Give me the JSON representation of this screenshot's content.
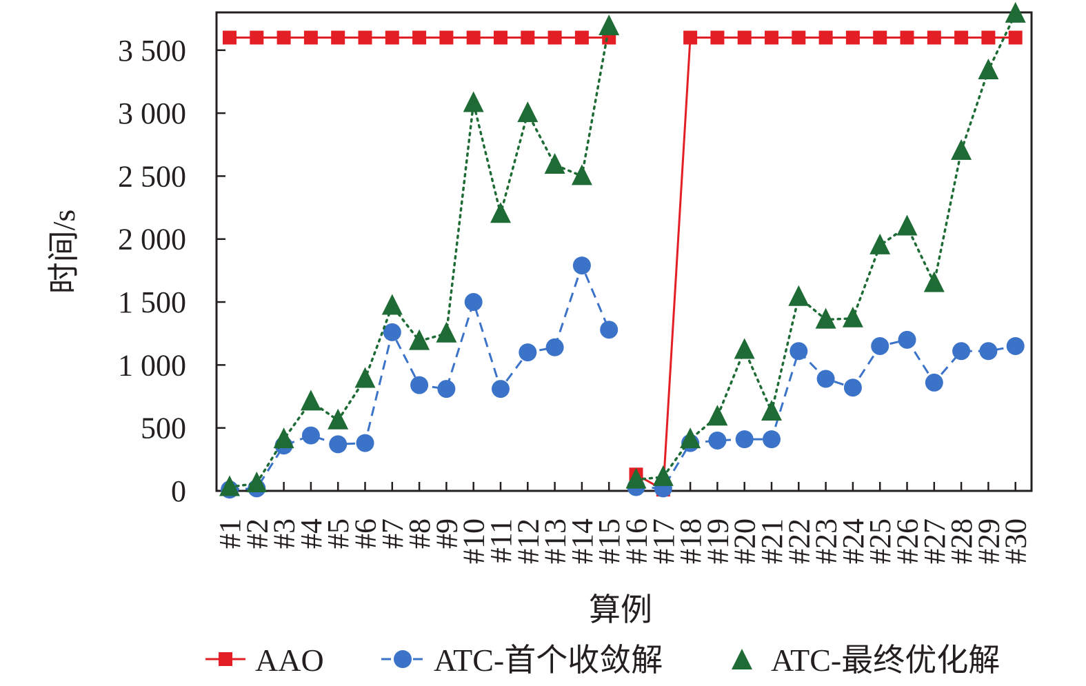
{
  "chart_data": {
    "type": "line",
    "title": "",
    "xlabel": "算例",
    "ylabel": "时间/s",
    "ylim": [
      0,
      3800
    ],
    "yticks": [
      0,
      500,
      1000,
      1500,
      2000,
      2500,
      3000,
      3500
    ],
    "ytick_labels": [
      "0",
      "500",
      "1 000",
      "1 500",
      "2 000",
      "2 500",
      "3 000",
      "3 500"
    ],
    "grid": false,
    "legend_position": "bottom",
    "categories": [
      "#1",
      "#2",
      "#3",
      "#4",
      "#5",
      "#6",
      "#7",
      "#8",
      "#9",
      "#10",
      "#11",
      "#12",
      "#13",
      "#14",
      "#15",
      "#16",
      "#17",
      "#18",
      "#19",
      "#20",
      "#21",
      "#22",
      "#23",
      "#24",
      "#25",
      "#26",
      "#27",
      "#28",
      "#29",
      "#30"
    ],
    "series": [
      {
        "name": "AAO",
        "color": "#e31e24",
        "marker": "square",
        "line_style": "solid",
        "segments": [
          [
            1,
            15
          ],
          [
            16,
            30
          ]
        ],
        "values": [
          3600,
          3600,
          3600,
          3600,
          3600,
          3600,
          3600,
          3600,
          3600,
          3600,
          3600,
          3600,
          3600,
          3600,
          3600,
          130,
          10,
          3600,
          3600,
          3600,
          3600,
          3600,
          3600,
          3600,
          3600,
          3600,
          3600,
          3600,
          3600,
          3600
        ]
      },
      {
        "name": "ATC-首个收敛解",
        "color": "#3b73c8",
        "marker": "circle",
        "line_style": "dashed",
        "segments": [
          [
            1,
            15
          ],
          [
            16,
            30
          ]
        ],
        "values": [
          10,
          20,
          360,
          440,
          370,
          380,
          1260,
          840,
          810,
          1500,
          810,
          1100,
          1140,
          1790,
          1280,
          30,
          20,
          380,
          400,
          410,
          410,
          1110,
          890,
          820,
          1150,
          1200,
          860,
          1110,
          1110,
          1150
        ]
      },
      {
        "name": "ATC-最终优化解",
        "color": "#1e6b35",
        "marker": "triangle",
        "line_style": "dotted",
        "segments": [
          [
            1,
            15
          ],
          [
            16,
            30
          ]
        ],
        "values": [
          30,
          60,
          410,
          710,
          560,
          890,
          1470,
          1190,
          1250,
          3080,
          2200,
          3000,
          2590,
          2500,
          3690,
          90,
          110,
          410,
          590,
          1120,
          630,
          1540,
          1360,
          1370,
          1950,
          2100,
          1650,
          2700,
          3340,
          3790
        ]
      }
    ]
  }
}
